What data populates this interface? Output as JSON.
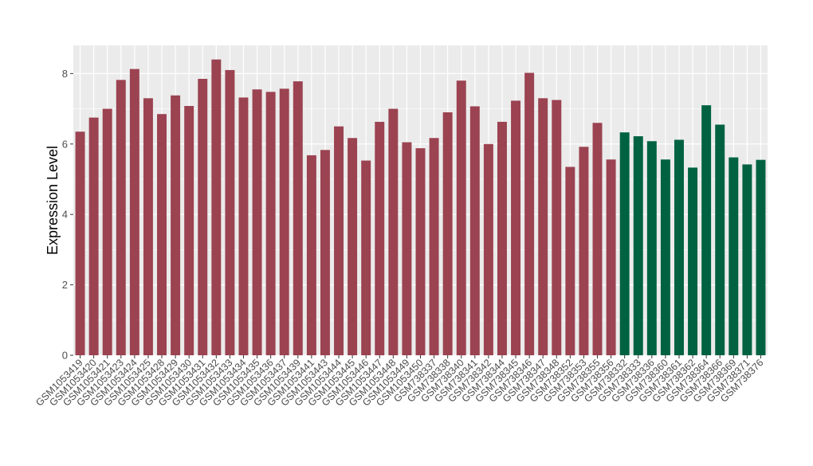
{
  "chart_data": {
    "type": "bar",
    "title": "",
    "xlabel": "",
    "ylabel": "Expression Level",
    "ylim": [
      0,
      8.8
    ],
    "yticks": [
      0,
      2,
      4,
      6,
      8
    ],
    "grid": true,
    "legend": "none",
    "colors": {
      "group_a": "#9b4351",
      "group_b": "#006241",
      "panel_bg": "#ebebeb",
      "grid": "#ffffff"
    },
    "categories": [
      "GSM1053419",
      "GSM1053420",
      "GSM1053421",
      "GSM1053423",
      "GSM1053424",
      "GSM1053425",
      "GSM1053428",
      "GSM1053429",
      "GSM1053430",
      "GSM1053431",
      "GSM1053432",
      "GSM1053433",
      "GSM1053434",
      "GSM1053435",
      "GSM1053436",
      "GSM1053437",
      "GSM1053439",
      "GSM1053441",
      "GSM1053443",
      "GSM1053444",
      "GSM1053445",
      "GSM1053446",
      "GSM1053447",
      "GSM1053448",
      "GSM1053449",
      "GSM1053450",
      "GSM738337",
      "GSM738338",
      "GSM738340",
      "GSM738341",
      "GSM738342",
      "GSM738344",
      "GSM738345",
      "GSM738346",
      "GSM738347",
      "GSM738348",
      "GSM738352",
      "GSM738353",
      "GSM738355",
      "GSM738356",
      "GSM738332",
      "GSM738333",
      "GSM738336",
      "GSM738360",
      "GSM738361",
      "GSM738362",
      "GSM738364",
      "GSM738366",
      "GSM738369",
      "GSM738371",
      "GSM738376"
    ],
    "values": [
      6.35,
      6.75,
      7.0,
      7.82,
      8.13,
      7.3,
      6.85,
      7.38,
      7.08,
      7.85,
      8.4,
      8.1,
      7.32,
      7.55,
      7.48,
      7.57,
      7.78,
      5.68,
      5.83,
      6.5,
      6.17,
      5.53,
      6.63,
      7.0,
      6.05,
      5.88,
      6.17,
      6.9,
      7.8,
      7.07,
      6.0,
      6.63,
      7.23,
      8.02,
      7.3,
      7.25,
      5.35,
      5.92,
      6.6,
      5.56,
      6.33,
      6.22,
      6.08,
      5.56,
      6.12,
      5.33,
      7.1,
      6.55,
      5.62,
      5.42,
      5.55
    ],
    "groups": [
      "a",
      "a",
      "a",
      "a",
      "a",
      "a",
      "a",
      "a",
      "a",
      "a",
      "a",
      "a",
      "a",
      "a",
      "a",
      "a",
      "a",
      "a",
      "a",
      "a",
      "a",
      "a",
      "a",
      "a",
      "a",
      "a",
      "a",
      "a",
      "a",
      "a",
      "a",
      "a",
      "a",
      "a",
      "a",
      "a",
      "a",
      "a",
      "a",
      "a",
      "b",
      "b",
      "b",
      "b",
      "b",
      "b",
      "b",
      "b",
      "b",
      "b",
      "b"
    ]
  }
}
